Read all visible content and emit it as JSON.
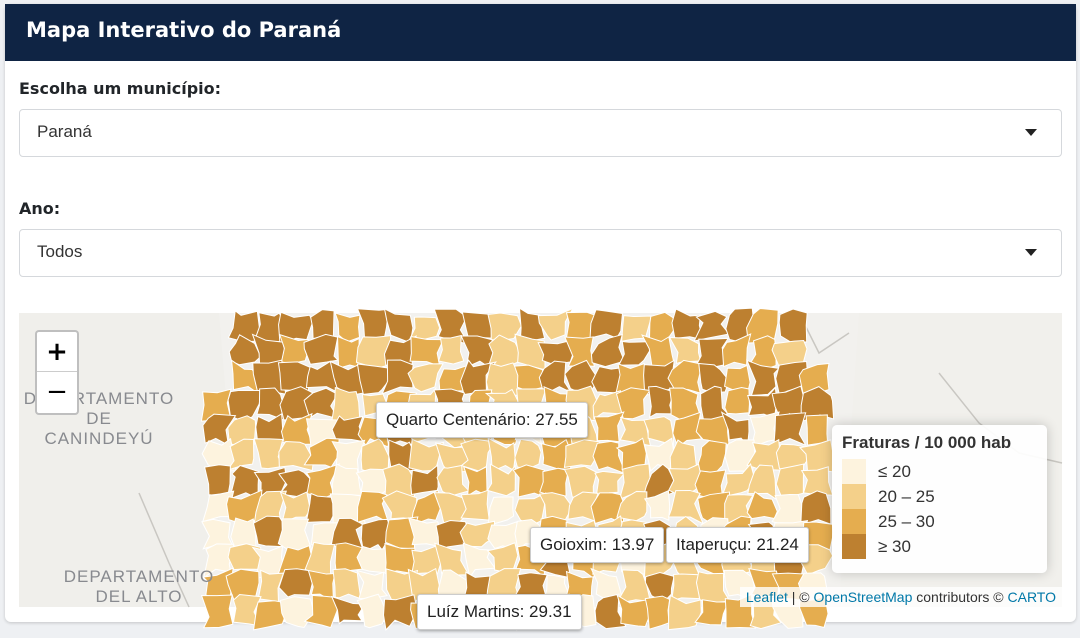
{
  "header": {
    "title": "Mapa Interativo do Paraná"
  },
  "municipio": {
    "label": "Escolha um município:",
    "value": "Paraná"
  },
  "ano": {
    "label": "Ano:",
    "value": "Todos"
  },
  "map": {
    "zoom_in": "+",
    "zoom_out": "−",
    "bg_labels": {
      "dep1_line1": "DEPARTAMENTO",
      "dep1_line2": "DE",
      "dep1_line3": "CANINDEYÚ",
      "dep2_line1": "DEPARTAMENTO",
      "dep2_line2": "DEL ALTO"
    },
    "tooltips": {
      "quarto": "Quarto Centenário: 27.55",
      "goioxim": "Goioxim: 13.97",
      "itaperucu": "Itaperuçu: 21.24",
      "partial": "Luíz Martins: 29.31"
    },
    "legend": {
      "title": "Fraturas / 10 000 hab",
      "items": [
        {
          "label": "≤ 20",
          "color": "#fdf3de"
        },
        {
          "label": "20 – 25",
          "color": "#f4d08a"
        },
        {
          "label": "25 – 30",
          "color": "#e5ad4f"
        },
        {
          "label": "≥ 30",
          "color": "#bd8030"
        }
      ]
    },
    "attribution": {
      "leaflet": "Leaflet",
      "sep": "| ©",
      "osm": "OpenStreetMap",
      "contrib": "contributors ©",
      "carto": "CARTO"
    }
  }
}
